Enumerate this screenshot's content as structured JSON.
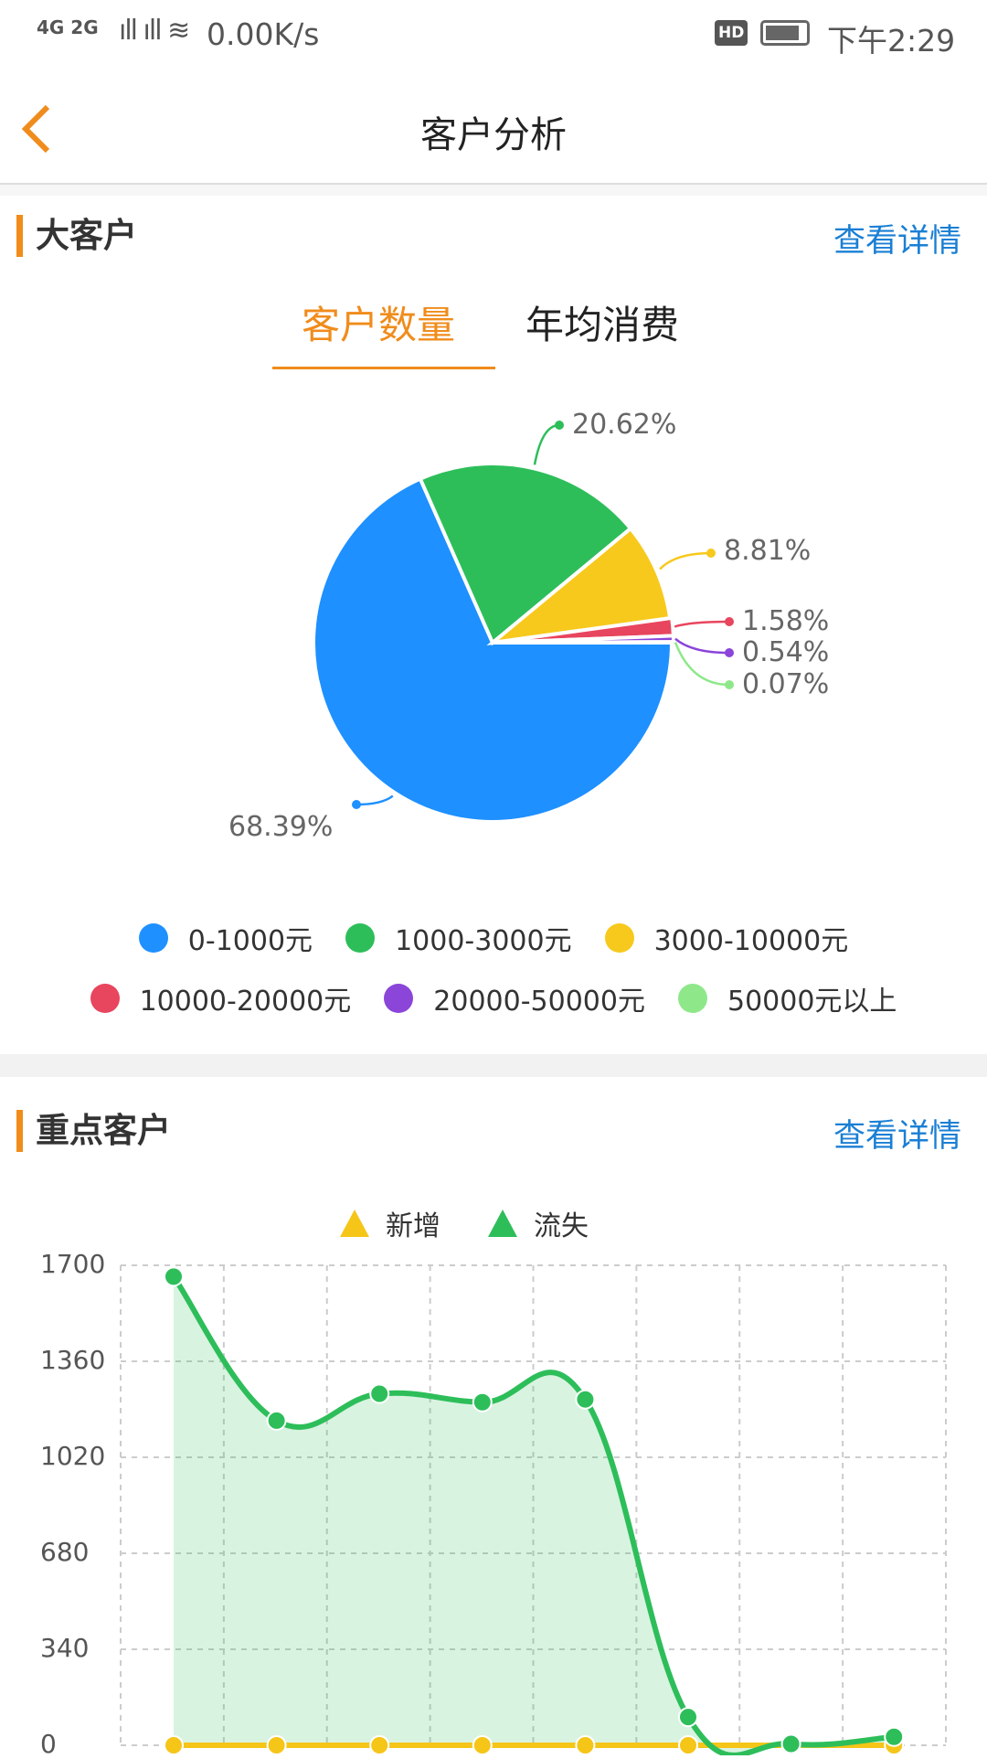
{
  "status_bar": {
    "network": "4G 2G",
    "speed": "0.00K/s",
    "hd": "HD",
    "time": "下午2:29"
  },
  "header": {
    "title": "客户分析",
    "back_icon": "chevron-left-icon"
  },
  "big_customers": {
    "title": "大客户",
    "more": "查看详情",
    "tabs": [
      {
        "label": "客户数量",
        "active": true
      },
      {
        "label": "年均消费",
        "active": false
      }
    ],
    "chart_data": {
      "type": "pie",
      "categories": [
        "0-1000元",
        "1000-3000元",
        "3000-10000元",
        "10000-20000元",
        "20000-50000元",
        "50000元以上"
      ],
      "values": [
        68.39,
        20.62,
        8.81,
        1.58,
        0.54,
        0.07
      ],
      "labels": [
        "68.39%",
        "20.62%",
        "8.81%",
        "1.58%",
        "0.54%",
        "0.07%"
      ],
      "colors": [
        "#1e90ff",
        "#2dbe5a",
        "#f7c91c",
        "#e8455e",
        "#8b45d9",
        "#8ee88a"
      ],
      "legend": "bottom"
    }
  },
  "key_customers": {
    "title": "重点客户",
    "more": "查看详情",
    "chart_data": {
      "type": "area",
      "x": [
        1,
        2,
        3,
        4,
        5,
        6,
        7,
        8
      ],
      "series": [
        {
          "name": "新增",
          "values": [
            0,
            0,
            0,
            0,
            0,
            0,
            0,
            0
          ],
          "color": "#f5c518"
        },
        {
          "name": "流失",
          "values": [
            1660,
            1150,
            1245,
            1215,
            1225,
            100,
            5,
            30
          ],
          "color": "#2dbe5a"
        }
      ],
      "ylim": [
        0,
        1700
      ],
      "yticks": [
        "0",
        "340",
        "680",
        "1020",
        "1360",
        "1700"
      ],
      "grid": true,
      "legend": "top"
    }
  }
}
